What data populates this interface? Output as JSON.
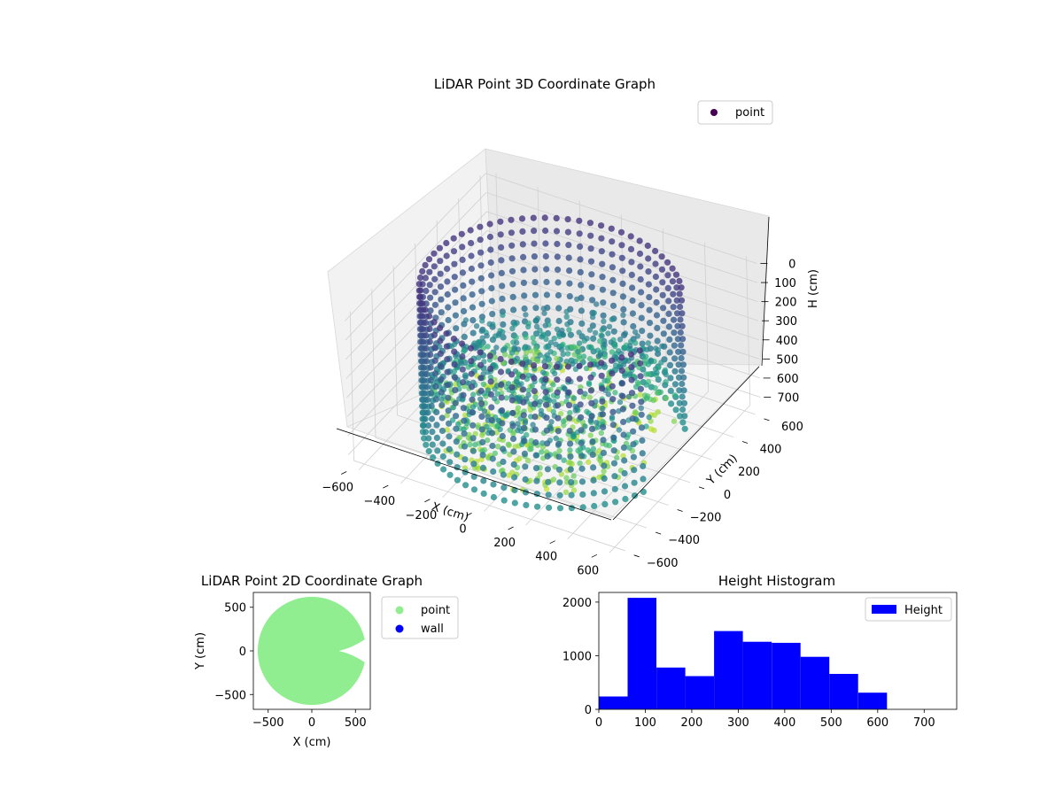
{
  "chart_data": [
    {
      "type": "scatter3d",
      "title": "LiDAR Point 3D Coordinate Graph",
      "xlabel": "X (cm)",
      "ylabel": "Y (cm)",
      "zlabel": "H (cm)",
      "xticks": [
        -600,
        -400,
        -200,
        0,
        200,
        400,
        600
      ],
      "yticks": [
        -600,
        -400,
        -200,
        0,
        200,
        400,
        600
      ],
      "zticks": [
        0,
        100,
        200,
        300,
        400,
        500,
        600,
        700
      ],
      "xlim": [
        -650,
        650
      ],
      "ylim": [
        -650,
        650
      ],
      "zlim": [
        760,
        0
      ],
      "legend": {
        "label": "point",
        "position": "top-right"
      },
      "ring": {
        "radius_cm": 560,
        "height_top_cm": 0,
        "height_bottom_cm": 760,
        "opening_start_deg": -20,
        "opening_end_deg": 35
      },
      "colormap": "viridis",
      "grid": true
    },
    {
      "type": "scatter",
      "title": "LiDAR Point 2D Coordinate Graph",
      "xlabel": "X (cm)",
      "ylabel": "Y (cm)",
      "xticks": [
        -500,
        0,
        500
      ],
      "yticks": [
        -500,
        0,
        500
      ],
      "xlim": [
        -670,
        670
      ],
      "ylim": [
        -670,
        670
      ],
      "legend": [
        {
          "label": "point",
          "color": "#90ee90"
        },
        {
          "label": "wall",
          "color": "#0000ff"
        }
      ],
      "legend_position": "outside-right",
      "disk_radius_cm": 620
    },
    {
      "type": "bar",
      "title": "Height Histogram",
      "bar_color": "#0000ff",
      "legend": {
        "label": "Height",
        "position": "top-right"
      },
      "bin_edges": [
        0,
        62,
        124,
        186,
        248,
        310,
        372,
        434,
        496,
        558,
        620
      ],
      "counts": [
        240,
        2080,
        780,
        620,
        1460,
        1260,
        1240,
        980,
        660,
        310
      ],
      "xlim": [
        0,
        770
      ],
      "ylim": [
        0,
        2180
      ],
      "xticks": [
        0,
        100,
        200,
        300,
        400,
        500,
        600,
        700
      ],
      "yticks": [
        0,
        1000,
        2000
      ]
    }
  ]
}
